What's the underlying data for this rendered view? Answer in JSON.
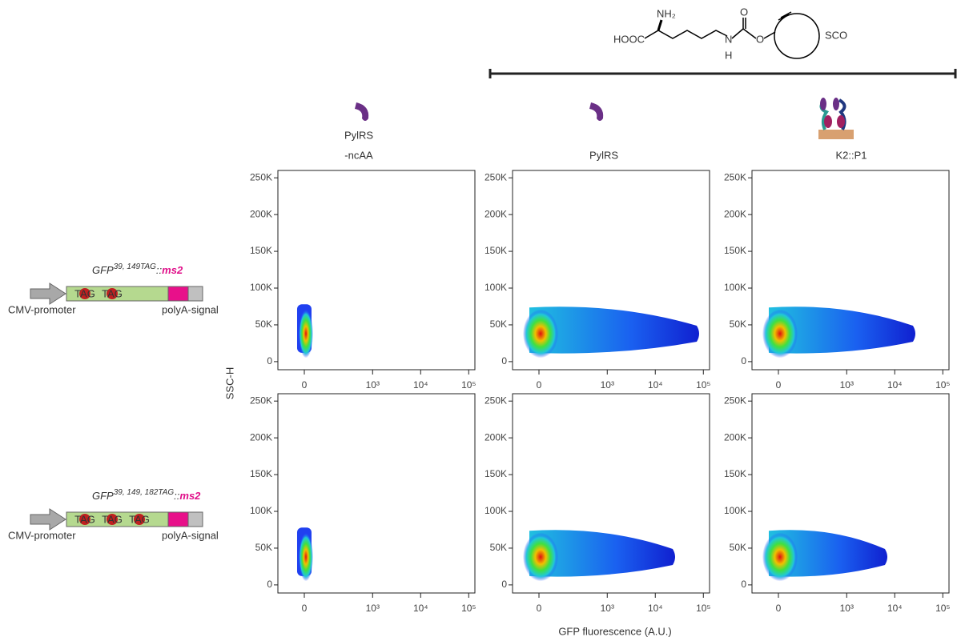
{
  "molecule": {
    "labels": [
      "NH₂",
      "HOOC",
      "N",
      "H",
      "O",
      "O",
      "SCO"
    ]
  },
  "columns": [
    [
      "PylRS",
      "-ncAA"
    ],
    [
      "PylRS"
    ],
    [
      "K2::P1"
    ]
  ],
  "constructs": [
    {
      "gene": "GFP",
      "superscript": "39, 149TAG",
      "separator": "::",
      "tag": "ms2",
      "stops": [
        "TAG",
        "TAG"
      ],
      "promoter": "CMV-promoter",
      "signal": "polyA-signal"
    },
    {
      "gene": "GFP",
      "superscript": "39, 149, 182TAG",
      "separator": "::",
      "tag": "ms2",
      "stops": [
        "TAG",
        "TAG",
        "TAG"
      ],
      "promoter": "CMV-promoter",
      "signal": "polyA-signal"
    }
  ],
  "axes": {
    "ylabel": "SSC-H",
    "xlabel": "GFP fluorescence (A.U.)"
  },
  "chart_data": [
    {
      "type": "density",
      "xscale": "biexponential",
      "xlim": [
        -124,
        134500
      ],
      "ylim": [
        -11000,
        260000
      ],
      "xticks": [
        0,
        {
          "value": 1000,
          "label": "10³"
        },
        {
          "value": 10000,
          "label": "10⁴"
        },
        {
          "value": 100000,
          "label": "10⁵"
        }
      ],
      "yticks": [
        0,
        {
          "value": 50000,
          "label": "50K"
        },
        {
          "value": 100000,
          "label": "100K"
        },
        {
          "value": 150000,
          "label": "150K"
        },
        {
          "value": 200000,
          "label": "200K"
        },
        {
          "value": 250000,
          "label": "250K"
        }
      ]
    },
    {
      "type": "density",
      "xscale": "biexponential",
      "xlim": [
        -124,
        134500
      ],
      "ylim": [
        -11000,
        260000
      ],
      "xticks": [
        0,
        {
          "value": 1000,
          "label": "10³"
        },
        {
          "value": 10000,
          "label": "10⁴"
        },
        {
          "value": 100000,
          "label": "10⁵"
        }
      ],
      "yticks": [
        0,
        {
          "value": 50000,
          "label": "50K"
        },
        {
          "value": 100000,
          "label": "100K"
        },
        {
          "value": 150000,
          "label": "150K"
        },
        {
          "value": 200000,
          "label": "200K"
        },
        {
          "value": 250000,
          "label": "250K"
        }
      ]
    },
    {
      "type": "density",
      "xscale": "biexponential",
      "xlim": [
        -124,
        134500
      ],
      "ylim": [
        -11000,
        260000
      ],
      "xticks": [
        0,
        {
          "value": 1000,
          "label": "10³"
        },
        {
          "value": 10000,
          "label": "10⁴"
        },
        {
          "value": 100000,
          "label": "10⁵"
        }
      ],
      "yticks": [
        0,
        {
          "value": 50000,
          "label": "50K"
        },
        {
          "value": 100000,
          "label": "100K"
        },
        {
          "value": 150000,
          "label": "150K"
        },
        {
          "value": 200000,
          "label": "200K"
        },
        {
          "value": 250000,
          "label": "250K"
        }
      ]
    },
    {
      "type": "density",
      "xscale": "biexponential",
      "xlim": [
        -124,
        134500
      ],
      "ylim": [
        -11000,
        260000
      ],
      "xticks": [
        0,
        {
          "value": 1000,
          "label": "10³"
        },
        {
          "value": 10000,
          "label": "10⁴"
        },
        {
          "value": 100000,
          "label": "10⁵"
        }
      ],
      "yticks": [
        0,
        {
          "value": 50000,
          "label": "50K"
        },
        {
          "value": 100000,
          "label": "100K"
        },
        {
          "value": 150000,
          "label": "150K"
        },
        {
          "value": 200000,
          "label": "200K"
        },
        {
          "value": 250000,
          "label": "250K"
        }
      ]
    },
    {
      "type": "density",
      "xscale": "biexponential",
      "xlim": [
        -124,
        134500
      ],
      "ylim": [
        -11000,
        260000
      ],
      "xticks": [
        0,
        {
          "value": 1000,
          "label": "10³"
        },
        {
          "value": 10000,
          "label": "10⁴"
        },
        {
          "value": 100000,
          "label": "10⁵"
        }
      ],
      "yticks": [
        0,
        {
          "value": 50000,
          "label": "50K"
        },
        {
          "value": 100000,
          "label": "100K"
        },
        {
          "value": 150000,
          "label": "150K"
        },
        {
          "value": 200000,
          "label": "200K"
        },
        {
          "value": 250000,
          "label": "250K"
        }
      ]
    },
    {
      "type": "density",
      "xscale": "biexponential",
      "xlim": [
        -124,
        134500
      ],
      "ylim": [
        -11000,
        260000
      ],
      "xticks": [
        0,
        {
          "value": 1000,
          "label": "10³"
        },
        {
          "value": 10000,
          "label": "10⁴"
        },
        {
          "value": 100000,
          "label": "10⁵"
        }
      ],
      "yticks": [
        0,
        {
          "value": 50000,
          "label": "50K"
        },
        {
          "value": 100000,
          "label": "100K"
        },
        {
          "value": 150000,
          "label": "150K"
        },
        {
          "value": 200000,
          "label": "200K"
        },
        {
          "value": 250000,
          "label": "250K"
        }
      ]
    }
  ]
}
